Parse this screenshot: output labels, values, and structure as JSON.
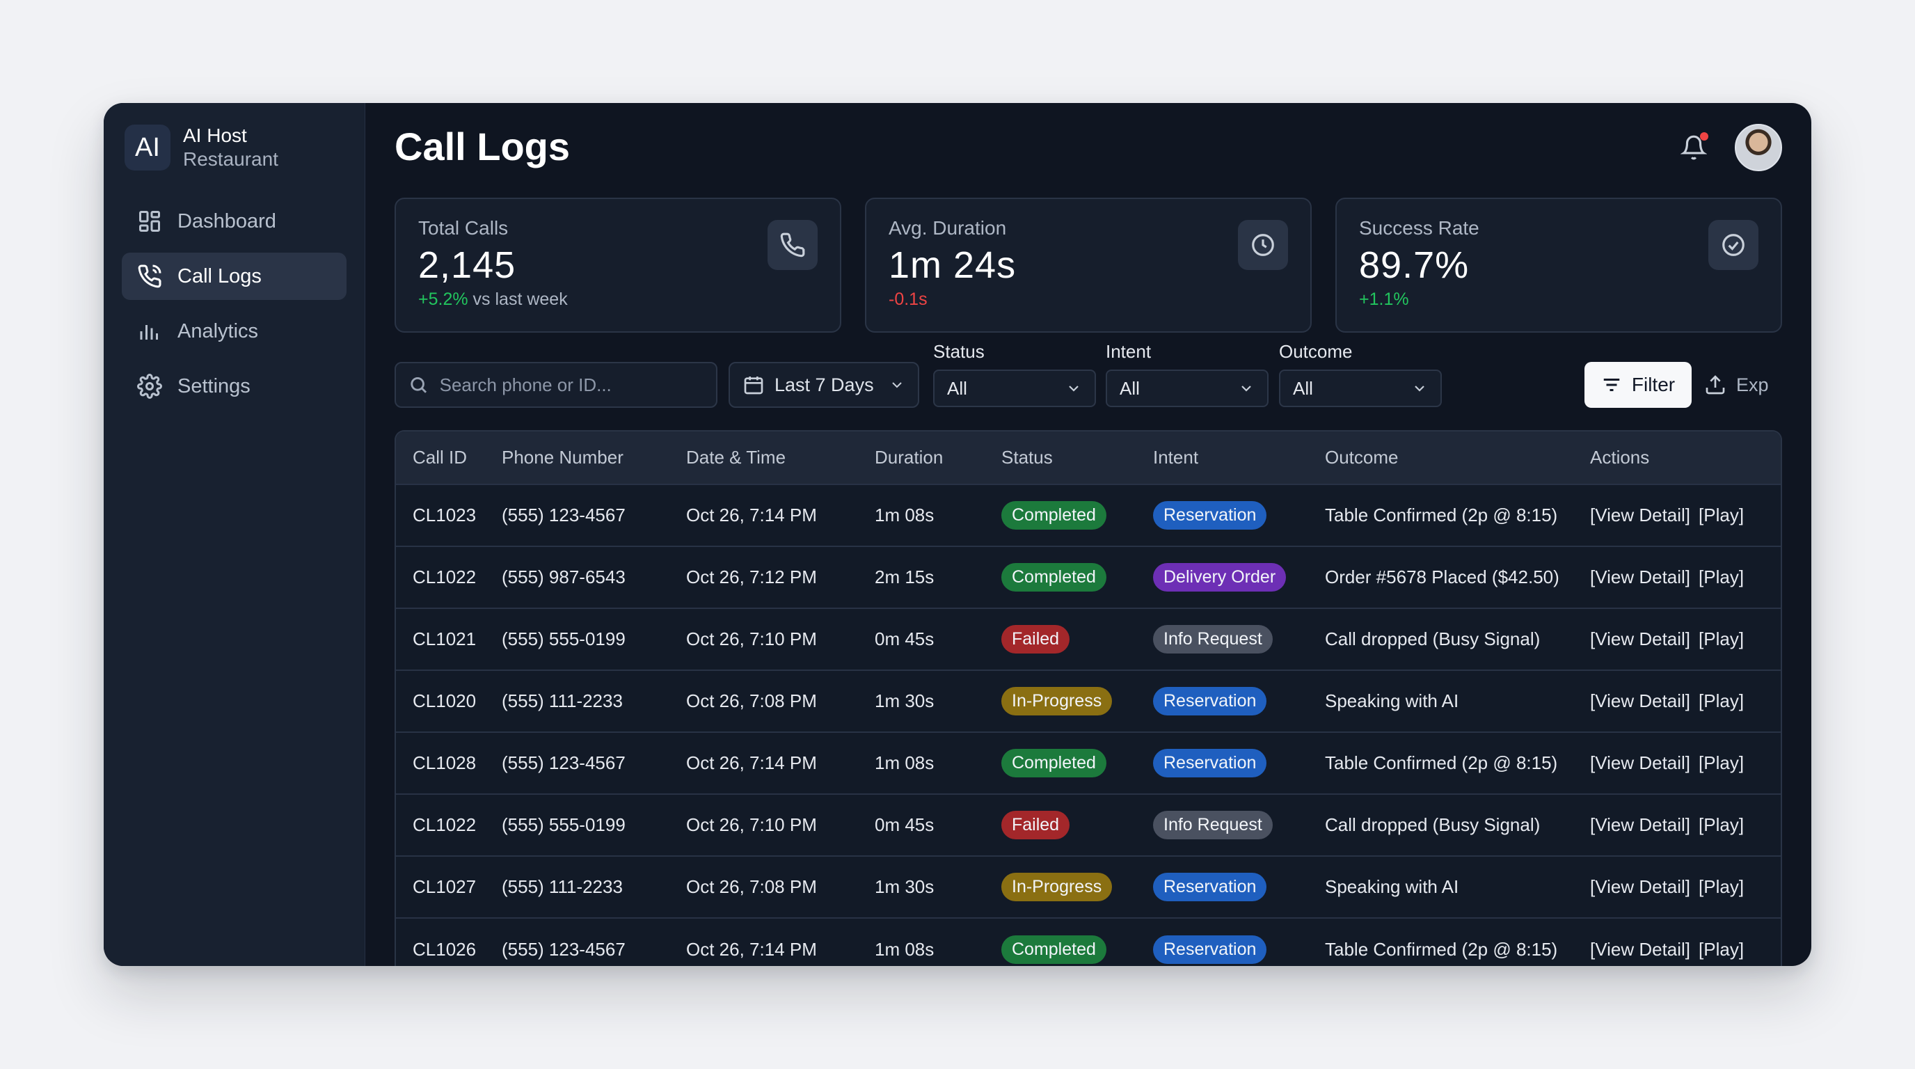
{
  "brand": {
    "logo": "AI",
    "name": "AI Host",
    "subtitle": "Restaurant"
  },
  "sidebar": {
    "items": [
      {
        "label": "Dashboard",
        "icon": "grid-icon",
        "active": false
      },
      {
        "label": "Call Logs",
        "icon": "phone-icon",
        "active": true
      },
      {
        "label": "Analytics",
        "icon": "bar-chart-icon",
        "active": false
      },
      {
        "label": "Settings",
        "icon": "gear-icon",
        "active": false
      }
    ]
  },
  "header": {
    "title": "Call Logs",
    "notification_dot_color": "#ef4444"
  },
  "cards": [
    {
      "label": "Total Calls",
      "value": "2,145",
      "delta": "+5.2%",
      "delta_suffix": " vs last week",
      "delta_type": "up",
      "icon": "phone-icon"
    },
    {
      "label": "Avg. Duration",
      "value": "1m 24s",
      "delta": "-0.1s",
      "delta_suffix": "",
      "delta_type": "down",
      "icon": "clock-icon"
    },
    {
      "label": "Success Rate",
      "value": "89.7%",
      "delta": "+1.1%",
      "delta_suffix": "",
      "delta_type": "up",
      "icon": "check-circle-icon"
    }
  ],
  "filters": {
    "search_placeholder": "Search phone or ID...",
    "date_range": "Last 7 Days",
    "status_label": "Status",
    "status_value": "All",
    "intent_label": "Intent",
    "intent_value": "All",
    "outcome_label": "Outcome",
    "outcome_value": "All",
    "filter_button": "Filter",
    "export_button": "Exp"
  },
  "table": {
    "columns": [
      "Call ID",
      "Phone Number",
      "Date & Time",
      "Duration",
      "Status",
      "Intent",
      "Outcome",
      "Actions"
    ],
    "action_labels": [
      "[View Detail]",
      "[Play]"
    ],
    "rows": [
      {
        "id": "CL1023",
        "phone": "(555) 123-4567",
        "datetime": "Oct 26, 7:14 PM",
        "duration": "1m 08s",
        "status": "Completed",
        "intent": "Reservation",
        "outcome": "Table Confirmed (2p @ 8:15)"
      },
      {
        "id": "CL1022",
        "phone": "(555) 987-6543",
        "datetime": "Oct 26, 7:12 PM",
        "duration": "2m 15s",
        "status": "Completed",
        "intent": "Delivery Order",
        "outcome": "Order #5678 Placed ($42.50)"
      },
      {
        "id": "CL1021",
        "phone": "(555) 555-0199",
        "datetime": "Oct 26, 7:10 PM",
        "duration": "0m 45s",
        "status": "Failed",
        "intent": "Info Request",
        "outcome": "Call dropped (Busy Signal)"
      },
      {
        "id": "CL1020",
        "phone": "(555) 111-2233",
        "datetime": "Oct 26, 7:08 PM",
        "duration": "1m 30s",
        "status": "In-Progress",
        "intent": "Reservation",
        "outcome": "Speaking with AI"
      },
      {
        "id": "CL1028",
        "phone": "(555) 123-4567",
        "datetime": "Oct 26, 7:14 PM",
        "duration": "1m 08s",
        "status": "Completed",
        "intent": "Reservation",
        "outcome": "Table Confirmed (2p @ 8:15)"
      },
      {
        "id": "CL1022",
        "phone": "(555) 555-0199",
        "datetime": "Oct 26, 7:10 PM",
        "duration": "0m 45s",
        "status": "Failed",
        "intent": "Info Request",
        "outcome": "Call dropped (Busy Signal)"
      },
      {
        "id": "CL1027",
        "phone": "(555) 111-2233",
        "datetime": "Oct 26, 7:08 PM",
        "duration": "1m 30s",
        "status": "In-Progress",
        "intent": "Reservation",
        "outcome": "Speaking with AI"
      },
      {
        "id": "CL1026",
        "phone": "(555) 123-4567",
        "datetime": "Oct 26, 7:14 PM",
        "duration": "1m 08s",
        "status": "Completed",
        "intent": "Reservation",
        "outcome": "Table Confirmed (2p @ 8:15)"
      }
    ]
  },
  "colors": {
    "status": {
      "Completed": "#1c7a3c",
      "Failed": "#a3272a",
      "In-Progress": "#8a6f12"
    },
    "intent": {
      "Reservation": "#1f5fbf",
      "Delivery Order": "#6d2fb5",
      "Info Request": "#4a5160"
    },
    "up": "#22c55e",
    "down": "#ef4444"
  }
}
